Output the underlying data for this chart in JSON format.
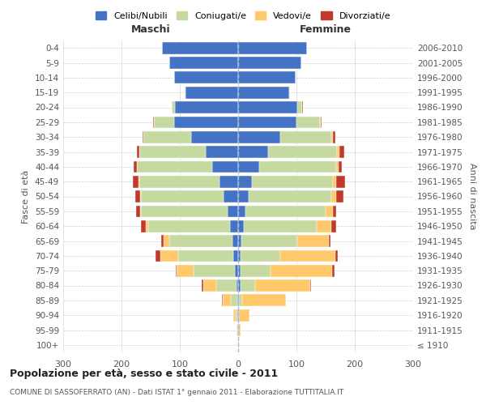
{
  "age_groups": [
    "100+",
    "95-99",
    "90-94",
    "85-89",
    "80-84",
    "75-79",
    "70-74",
    "65-69",
    "60-64",
    "55-59",
    "50-54",
    "45-49",
    "40-44",
    "35-39",
    "30-34",
    "25-29",
    "20-24",
    "15-19",
    "10-14",
    "5-9",
    "0-4"
  ],
  "birth_years": [
    "≤ 1910",
    "1911-1915",
    "1916-1920",
    "1921-1925",
    "1926-1930",
    "1931-1935",
    "1936-1940",
    "1941-1945",
    "1946-1950",
    "1951-1955",
    "1956-1960",
    "1961-1965",
    "1966-1970",
    "1971-1975",
    "1976-1980",
    "1981-1985",
    "1986-1990",
    "1991-1995",
    "1996-2000",
    "2001-2005",
    "2006-2010"
  ],
  "maschi": {
    "celibi": [
      0,
      1,
      2,
      3,
      5,
      7,
      10,
      13,
      18,
      22,
      30,
      38,
      52,
      68,
      90,
      115,
      110,
      95,
      115,
      120,
      130
    ],
    "coniugati": [
      1,
      2,
      5,
      15,
      40,
      80,
      100,
      110,
      145,
      155,
      150,
      145,
      140,
      120,
      90,
      40,
      8,
      2,
      0,
      0,
      0
    ],
    "vedovi": [
      0,
      2,
      5,
      18,
      25,
      30,
      35,
      12,
      5,
      3,
      2,
      2,
      1,
      1,
      0,
      0,
      0,
      0,
      0,
      0,
      0
    ],
    "divorziati": [
      0,
      0,
      1,
      1,
      2,
      2,
      10,
      5,
      10,
      8,
      10,
      12,
      8,
      5,
      3,
      2,
      1,
      0,
      0,
      0,
      0
    ]
  },
  "femmine": {
    "nubili": [
      0,
      0,
      2,
      3,
      5,
      5,
      5,
      8,
      12,
      15,
      20,
      28,
      40,
      58,
      80,
      105,
      105,
      90,
      100,
      110,
      120
    ],
    "coniugate": [
      0,
      0,
      2,
      8,
      30,
      60,
      75,
      100,
      130,
      145,
      148,
      145,
      140,
      125,
      95,
      45,
      10,
      2,
      0,
      0,
      0
    ],
    "vedove": [
      1,
      5,
      20,
      80,
      100,
      110,
      100,
      60,
      30,
      15,
      10,
      8,
      5,
      5,
      3,
      2,
      1,
      0,
      0,
      0,
      0
    ],
    "divorziate": [
      0,
      0,
      0,
      0,
      2,
      5,
      5,
      3,
      10,
      8,
      15,
      18,
      8,
      10,
      5,
      3,
      2,
      0,
      0,
      0,
      0
    ]
  },
  "colors": {
    "celibi": "#4472C4",
    "coniugati": "#c5d9a0",
    "vedovi": "#ffc86b",
    "divorziati": "#c0392b"
  },
  "xlim": 300,
  "title": "Popolazione per età, sesso e stato civile - 2011",
  "subtitle": "COMUNE DI SASSOFERRATO (AN) - Dati ISTAT 1° gennaio 2011 - Elaborazione TUTTITALIA.IT",
  "ylabel_left": "Fasce di età",
  "ylabel_right": "Anni di nascita",
  "xlabel_left": "Maschi",
  "xlabel_right": "Femmine",
  "bg_color": "#ffffff",
  "grid_color": "#cccccc"
}
